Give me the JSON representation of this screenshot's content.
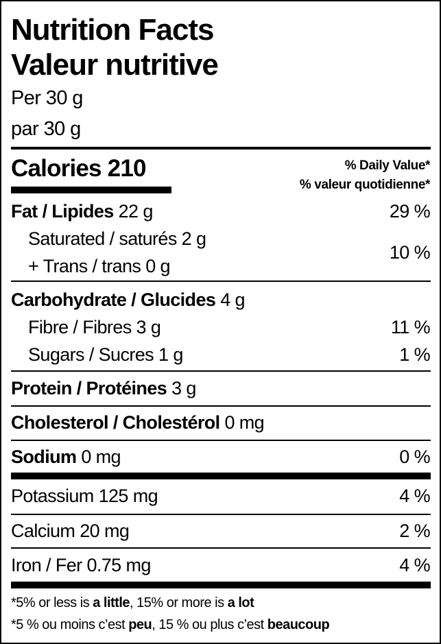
{
  "header": {
    "title_en": "Nutrition Facts",
    "title_fr": "Valeur nutritive",
    "serving_en": "Per 30 g",
    "serving_fr": "par 30 g"
  },
  "calories": {
    "label": "Calories",
    "value": "210"
  },
  "daily_value_header": {
    "en": "% Daily Value*",
    "fr": "% valeur quotidienne*"
  },
  "nutrients": {
    "fat": {
      "label": "Fat / Lipides",
      "amount": "22 g",
      "dv": "29 %"
    },
    "saturated": {
      "label": "Saturated / saturés",
      "amount": "2 g"
    },
    "trans": {
      "label": "+ Trans / trans",
      "amount": "0 g"
    },
    "sat_trans_dv": "10 %",
    "carbohydrate": {
      "label": "Carbohydrate / Glucides",
      "amount": "4 g"
    },
    "fibre": {
      "label": "Fibre / Fibres",
      "amount": "3 g",
      "dv": "11 %"
    },
    "sugars": {
      "label": "Sugars / Sucres",
      "amount": "1 g",
      "dv": "1 %"
    },
    "protein": {
      "label": "Protein / Protéines",
      "amount": "3 g"
    },
    "cholesterol": {
      "label": "Cholesterol / Cholestérol",
      "amount": "0 mg"
    },
    "sodium": {
      "label": "Sodium",
      "amount": "0 mg",
      "dv": "0 %"
    },
    "potassium": {
      "label": "Potassium",
      "amount": "125 mg",
      "dv": "4 %"
    },
    "calcium": {
      "label": "Calcium",
      "amount": "20 mg",
      "dv": "2 %"
    },
    "iron": {
      "label": "Iron / Fer",
      "amount": "0.75 mg",
      "dv": "4 %"
    }
  },
  "footnote": {
    "en": {
      "p1": "*5% or less is ",
      "b1": "a little",
      "p2": ", 15% or more is ",
      "b2": "a lot"
    },
    "fr": {
      "p1": "*5 % ou moins c’est ",
      "b1": "peu",
      "p2": ", 15 % ou plus c’est ",
      "b2": "beaucoup"
    }
  }
}
